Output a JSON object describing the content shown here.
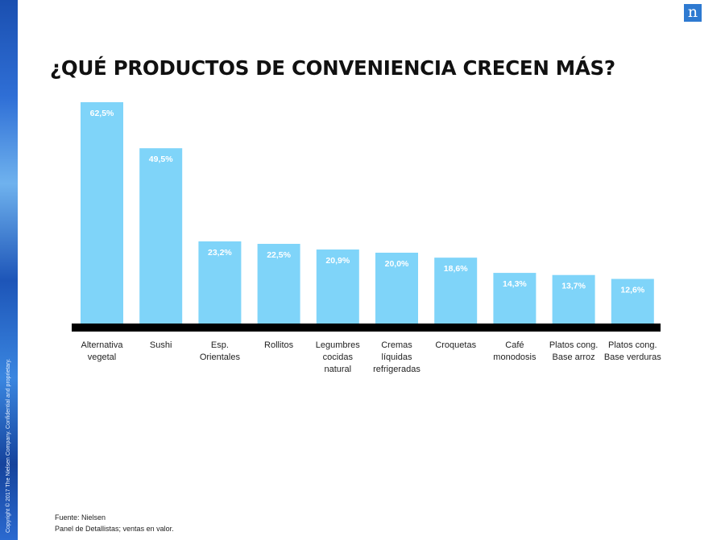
{
  "header": {
    "title": "¿QUÉ PRODUCTOS DE CONVENIENCIA CRECEN MÁS?",
    "logo_letter": "n"
  },
  "side": {
    "copyright": "Copyright © 2017 The Nielsen Company. Confidential and proprietary."
  },
  "footer": {
    "source": "Fuente: Nielsen",
    "note": "Panel de Detallistas; ventas en valor."
  },
  "colors": {
    "bar": "#7fd4f9",
    "baseline": "#000000",
    "label_inside": "#ffffff",
    "brand": "#2e7ad1"
  },
  "chart_data": {
    "type": "bar",
    "title": "¿QUÉ PRODUCTOS DE CONVENIENCIA CRECEN MÁS?",
    "unit": "%",
    "categories": [
      [
        "Alternativa",
        "vegetal"
      ],
      [
        "Sushi"
      ],
      [
        "Esp.",
        "Orientales"
      ],
      [
        "Rollitos"
      ],
      [
        "Legumbres",
        "cocidas",
        "natural"
      ],
      [
        "Cremas",
        "líquidas",
        "refrigeradas"
      ],
      [
        "Croquetas"
      ],
      [
        "Café",
        "monodosis"
      ],
      [
        "Platos cong.",
        "Base arroz"
      ],
      [
        "Platos cong.",
        "Base verduras"
      ]
    ],
    "values": [
      62.5,
      49.5,
      23.2,
      22.5,
      20.9,
      20.0,
      18.6,
      14.3,
      13.7,
      12.6
    ],
    "value_labels": [
      "62,5%",
      "49,5%",
      "23,2%",
      "22,5%",
      "20,9%",
      "20,0%",
      "18,6%",
      "14,3%",
      "13,7%",
      "12,6%"
    ],
    "ylim": [
      0,
      62.5
    ],
    "grid": false,
    "legend": "none"
  }
}
